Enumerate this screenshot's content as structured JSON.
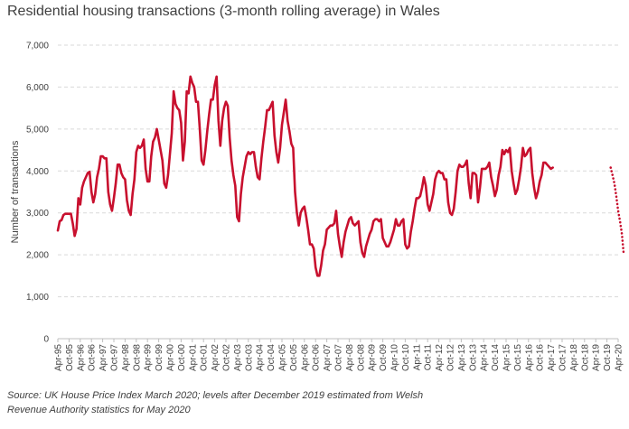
{
  "chart_data": {
    "type": "line",
    "title": "Residential housing transactions (3-month rolling average) in Wales",
    "ylabel": "Number of transactions",
    "xlabel": "",
    "ylim": [
      0,
      7000
    ],
    "yticks": [
      "0",
      "1,000",
      "2,000",
      "3,000",
      "4,000",
      "5,000",
      "6,000",
      "7,000"
    ],
    "ytick_values": [
      0,
      1000,
      2000,
      3000,
      4000,
      5000,
      6000,
      7000
    ],
    "grid": "horizontal dashed",
    "x_ticks": [
      "Apr-95",
      "Oct-95",
      "Apr-96",
      "Oct-96",
      "Apr-97",
      "Oct-97",
      "Apr-98",
      "Oct-98",
      "Apr-99",
      "Oct-99",
      "Apr-00",
      "Oct-00",
      "Apr-01",
      "Oct-01",
      "Apr-02",
      "Oct-02",
      "Apr-03",
      "Oct-03",
      "Apr-04",
      "Oct-04",
      "Apr-05",
      "Oct-05",
      "Apr-06",
      "Oct-06",
      "Apr-07",
      "Oct-07",
      "Apr-08",
      "Oct-08",
      "Apr-09",
      "Oct-09",
      "Apr-10",
      "Oct-10",
      "Apr-11",
      "Oct-11",
      "Apr-12",
      "Oct-12",
      "Apr-13",
      "Oct-13",
      "Apr-14",
      "Oct-14",
      "Apr-15",
      "Oct-15",
      "Apr-16",
      "Oct-16",
      "Apr-17",
      "Oct-17",
      "Apr-18",
      "Oct-18",
      "Apr-19",
      "Oct-19",
      "Apr-20"
    ],
    "series": [
      {
        "style": "solid",
        "color": "#c8102e",
        "start": "Apr-95",
        "values": [
          2580,
          2800,
          2830,
          2950,
          2980,
          2980,
          2980,
          2980,
          2750,
          2450,
          2620,
          3350,
          3200,
          3600,
          3750,
          3850,
          3950,
          3980,
          3500,
          3250,
          3450,
          3850,
          4050,
          4350,
          4350,
          4300,
          4300,
          3500,
          3200,
          3050,
          3350,
          3700,
          4150,
          4150,
          3950,
          3850,
          3800,
          3300,
          3050,
          2950,
          3450,
          3800,
          4450,
          4600,
          4550,
          4600,
          4750,
          4050,
          3750,
          3750,
          4350,
          4700,
          4800,
          5000,
          4750,
          4500,
          4250,
          3700,
          3600,
          3900,
          4400,
          4900,
          5900,
          5600,
          5500,
          5450,
          5150,
          4250,
          4700,
          5900,
          5850,
          6250,
          6100,
          6000,
          5650,
          5650,
          5000,
          4250,
          4150,
          4500,
          4950,
          5350,
          5700,
          5700,
          6050,
          6250,
          5200,
          4600,
          5200,
          5500,
          5650,
          5550,
          4800,
          4250,
          3900,
          3650,
          2900,
          2800,
          3450,
          3850,
          4100,
          4350,
          4450,
          4400,
          4450,
          4450,
          4100,
          3850,
          3800,
          4300,
          4700,
          5050,
          5450,
          5450,
          5550,
          5650,
          4850,
          4450,
          4200,
          4550,
          5100,
          5400,
          5700,
          5200,
          4950,
          4650,
          4550,
          3500,
          3000,
          2700,
          3000,
          3100,
          3150,
          2900,
          2600,
          2250,
          2250,
          2150,
          1700,
          1500,
          1500,
          1750,
          2100,
          2250,
          2600,
          2650,
          2700,
          2700,
          2750,
          3050,
          2500,
          2200,
          1950,
          2300,
          2550,
          2700,
          2850,
          2900,
          2750,
          2700,
          2750,
          2800,
          2300,
          2050,
          1950,
          2200,
          2350,
          2500,
          2600,
          2800,
          2850,
          2850,
          2800,
          2850,
          2400,
          2300,
          2200,
          2200,
          2300,
          2450,
          2600,
          2850,
          2700,
          2700,
          2800,
          2850,
          2250,
          2150,
          2200,
          2550,
          2800,
          3100,
          3350,
          3350,
          3400,
          3600,
          3850,
          3650,
          3200,
          3050,
          3250,
          3450,
          3800,
          3950,
          4000,
          3950,
          3950,
          3800,
          3800,
          3250,
          3000,
          2950,
          3100,
          3500,
          4000,
          4150,
          4100,
          4100,
          4150,
          4250,
          3700,
          3350,
          3950,
          3950,
          3900,
          3250,
          3600,
          4050,
          4050,
          4050,
          4100,
          4200,
          3850,
          3650,
          3400,
          3550,
          3900,
          4100,
          4500,
          4400,
          4500,
          4450,
          4550,
          4000,
          3700,
          3450,
          3550,
          3800,
          4100,
          4550,
          4350,
          4400,
          4500,
          4550,
          3950,
          3600,
          3350,
          3500,
          3750,
          3900,
          4200,
          4200,
          4150,
          4100,
          4050,
          4080
        ]
      },
      {
        "style": "dotted",
        "color": "#c8102e",
        "start": "Dec-19",
        "values": [
          4080,
          3900,
          3700,
          3400,
          3050,
          2800,
          2500,
          2000
        ]
      }
    ]
  },
  "source": {
    "line1": "Source: UK House Price Index March 2020; levels after December 2019 estimated from Welsh",
    "line2": "Revenue Authority statistics for May 2020"
  }
}
